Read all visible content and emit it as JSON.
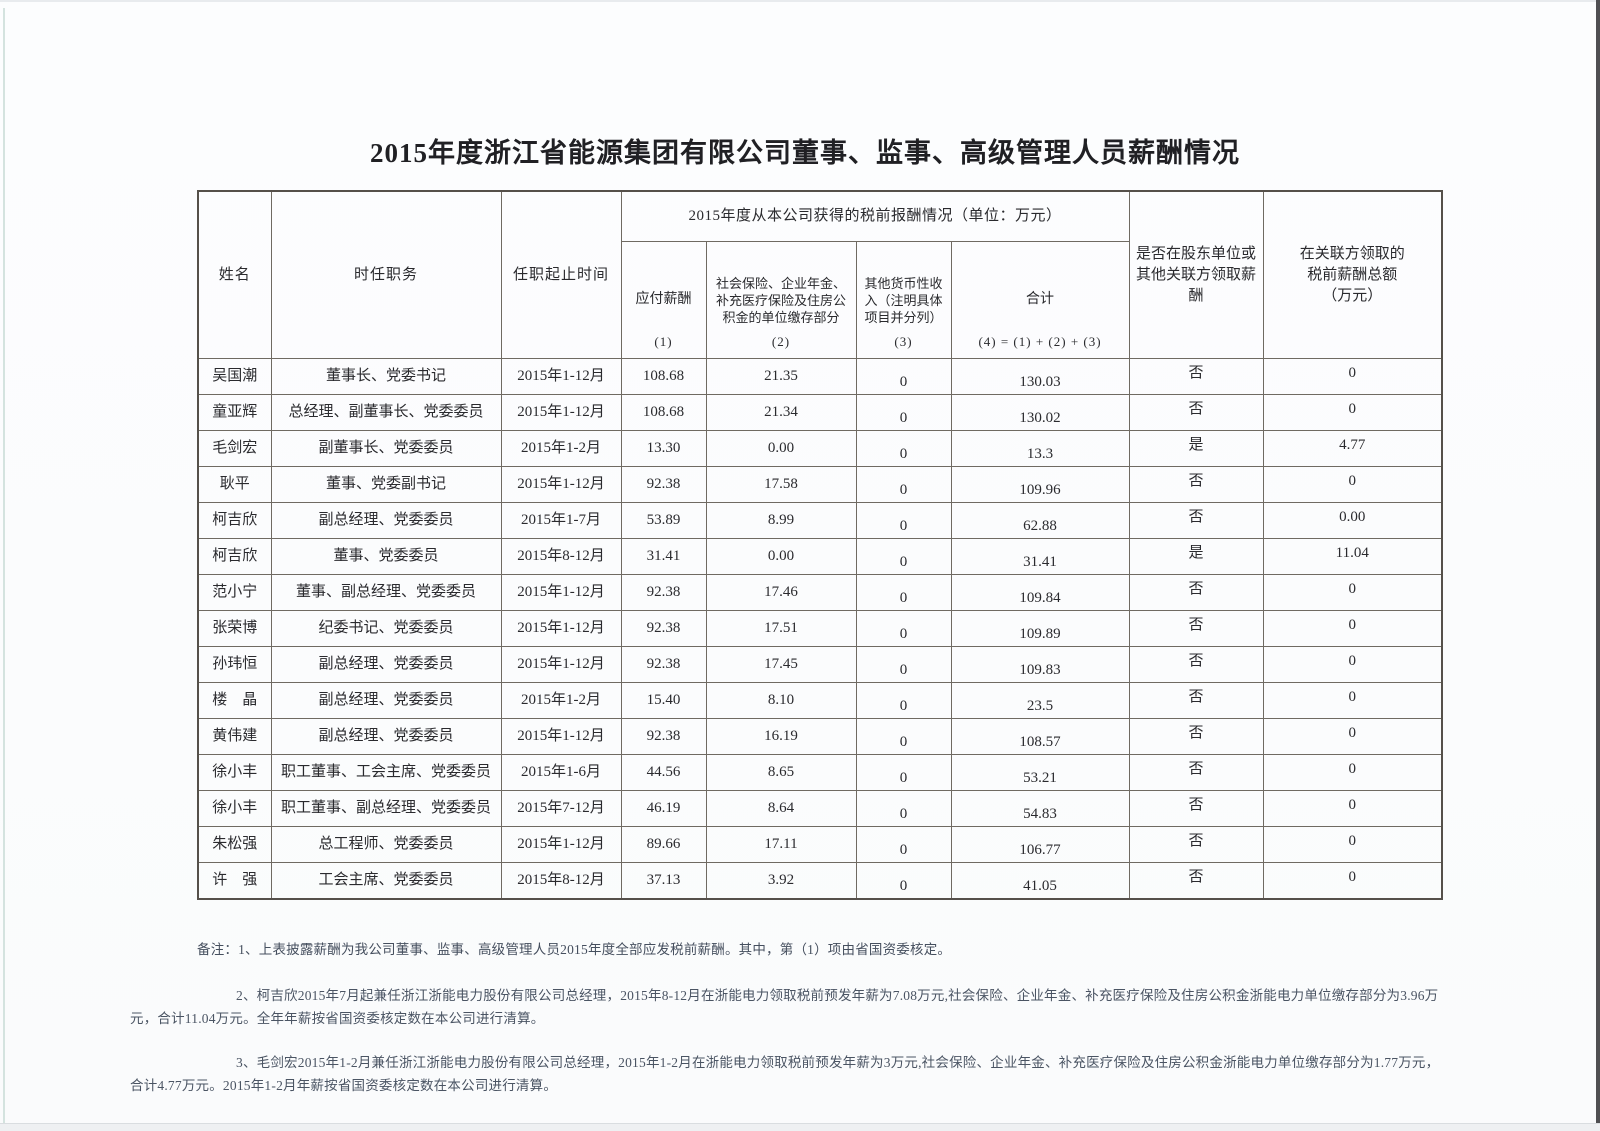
{
  "page": {
    "title": "2015年度浙江省能源集团有限公司董事、监事、高级管理人员薪酬情况"
  },
  "table": {
    "header": {
      "name": "姓名",
      "position": "时任职务",
      "term": "任职起止时间",
      "pretax_group": "2015年度从本公司获得的税前报酬情况（单位：万元）",
      "payable_label": "应付薪酬",
      "payable_no": "(1)",
      "insurance_label": "社会保险、企业年金、补充医疗保险及住房公积金的单位缴存部分",
      "insurance_no": "(2)",
      "other_label": "其他货币性收入（注明具体项目并分列）",
      "other_no": "(3)",
      "total_label": "合计",
      "total_no": "(4) = (1) + (2) + (3)",
      "related_flag": "是否在股东单位或其他关联方领取薪酬",
      "related_amount": "在关联方领取的税前薪酬总额（万元）"
    },
    "rows": [
      {
        "name": "吴国潮",
        "position": "董事长、党委书记",
        "term": "2015年1-12月",
        "payable": "108.68",
        "insurance": "21.35",
        "other": "0",
        "total": "130.03",
        "related": "否",
        "related_amount": "0"
      },
      {
        "name": "童亚辉",
        "position": "总经理、副董事长、党委委员",
        "term": "2015年1-12月",
        "payable": "108.68",
        "insurance": "21.34",
        "other": "0",
        "total": "130.02",
        "related": "否",
        "related_amount": "0"
      },
      {
        "name": "毛剑宏",
        "position": "副董事长、党委委员",
        "term": "2015年1-2月",
        "payable": "13.30",
        "insurance": "0.00",
        "other": "0",
        "total": "13.3",
        "related": "是",
        "related_amount": "4.77"
      },
      {
        "name": "耿平",
        "position": "董事、党委副书记",
        "term": "2015年1-12月",
        "payable": "92.38",
        "insurance": "17.58",
        "other": "0",
        "total": "109.96",
        "related": "否",
        "related_amount": "0"
      },
      {
        "name": "柯吉欣",
        "position": "副总经理、党委委员",
        "term": "2015年1-7月",
        "payable": "53.89",
        "insurance": "8.99",
        "other": "0",
        "total": "62.88",
        "related": "否",
        "related_amount": "0.00"
      },
      {
        "name": "柯吉欣",
        "position": "董事、党委委员",
        "term": "2015年8-12月",
        "payable": "31.41",
        "insurance": "0.00",
        "other": "0",
        "total": "31.41",
        "related": "是",
        "related_amount": "11.04"
      },
      {
        "name": "范小宁",
        "position": "董事、副总经理、党委委员",
        "term": "2015年1-12月",
        "payable": "92.38",
        "insurance": "17.46",
        "other": "0",
        "total": "109.84",
        "related": "否",
        "related_amount": "0"
      },
      {
        "name": "张荣博",
        "position": "纪委书记、党委委员",
        "term": "2015年1-12月",
        "payable": "92.38",
        "insurance": "17.51",
        "other": "0",
        "total": "109.89",
        "related": "否",
        "related_amount": "0"
      },
      {
        "name": "孙玮恒",
        "position": "副总经理、党委委员",
        "term": "2015年1-12月",
        "payable": "92.38",
        "insurance": "17.45",
        "other": "0",
        "total": "109.83",
        "related": "否",
        "related_amount": "0"
      },
      {
        "name": "楼　晶",
        "position": "副总经理、党委委员",
        "term": "2015年1-2月",
        "payable": "15.40",
        "insurance": "8.10",
        "other": "0",
        "total": "23.5",
        "related": "否",
        "related_amount": "0"
      },
      {
        "name": "黄伟建",
        "position": "副总经理、党委委员",
        "term": "2015年1-12月",
        "payable": "92.38",
        "insurance": "16.19",
        "other": "0",
        "total": "108.57",
        "related": "否",
        "related_amount": "0"
      },
      {
        "name": "徐小丰",
        "position": "职工董事、工会主席、党委委员",
        "term": "2015年1-6月",
        "payable": "44.56",
        "insurance": "8.65",
        "other": "0",
        "total": "53.21",
        "related": "否",
        "related_amount": "0"
      },
      {
        "name": "徐小丰",
        "position": "职工董事、副总经理、党委委员",
        "term": "2015年7-12月",
        "payable": "46.19",
        "insurance": "8.64",
        "other": "0",
        "total": "54.83",
        "related": "否",
        "related_amount": "0"
      },
      {
        "name": "朱松强",
        "position": "总工程师、党委委员",
        "term": "2015年1-12月",
        "payable": "89.66",
        "insurance": "17.11",
        "other": "0",
        "total": "106.77",
        "related": "否",
        "related_amount": "0"
      },
      {
        "name": "许　强",
        "position": "工会主席、党委委员",
        "term": "2015年8-12月",
        "payable": "37.13",
        "insurance": "3.92",
        "other": "0",
        "total": "41.05",
        "related": "否",
        "related_amount": "0"
      }
    ]
  },
  "notes": {
    "note1": "备注：1、上表披露薪酬为我公司董事、监事、高级管理人员2015年度全部应发税前薪酬。其中，第（1）项由省国资委核定。",
    "note2": "2、柯吉欣2015年7月起兼任浙江浙能电力股份有限公司总经理，2015年8-12月在浙能电力领取税前预发年薪为7.08万元,社会保险、企业年金、补充医疗保险及住房公积金浙能电力单位缴存部分为3.96万元，合计11.04万元。全年年薪按省国资委核定数在本公司进行清算。",
    "note3": "3、毛剑宏2015年1-2月兼任浙江浙能电力股份有限公司总经理，2015年1-2月在浙能电力领取税前预发年薪为3万元,社会保险、企业年金、补充医疗保险及住房公积金浙能电力单位缴存部分为1.77万元，合计4.77万元。2015年1-2月年薪按省国资委核定数在本公司进行清算。"
  }
}
